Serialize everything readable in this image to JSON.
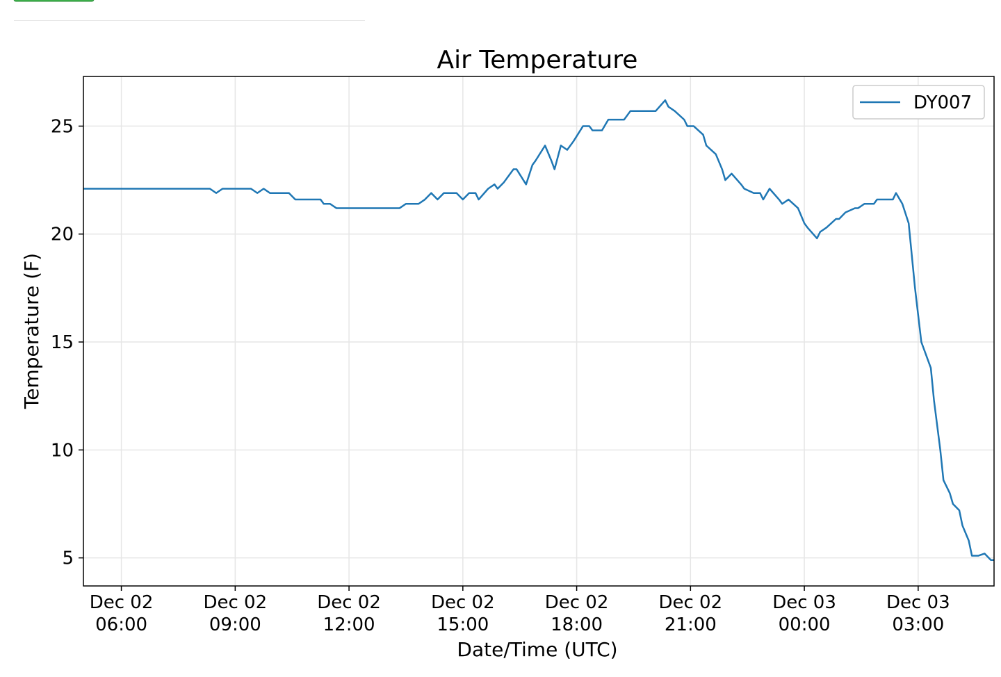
{
  "chart_data": {
    "type": "line",
    "title": "Air Temperature",
    "x_label": "Date/Time (UTC)",
    "y_label": "Temperature (F)",
    "x": [
      "Dec 02 05:00",
      "Dec 02 08:20",
      "Dec 02 08:30",
      "Dec 02 08:40",
      "Dec 02 09:25",
      "Dec 02 09:35",
      "Dec 02 09:45",
      "Dec 02 09:55",
      "Dec 02 10:25",
      "Dec 02 10:35",
      "Dec 02 11:15",
      "Dec 02 11:20",
      "Dec 02 11:30",
      "Dec 02 11:40",
      "Dec 02 13:20",
      "Dec 02 13:30",
      "Dec 02 13:50",
      "Dec 02 14:00",
      "Dec 02 14:10",
      "Dec 02 14:20",
      "Dec 02 14:30",
      "Dec 02 14:50",
      "Dec 02 15:00",
      "Dec 02 15:10",
      "Dec 02 15:20",
      "Dec 02 15:25",
      "Dec 02 15:40",
      "Dec 02 15:50",
      "Dec 02 15:55",
      "Dec 02 16:05",
      "Dec 02 16:20",
      "Dec 02 16:25",
      "Dec 02 16:40",
      "Dec 02 16:50",
      "Dec 02 16:55",
      "Dec 02 17:10",
      "Dec 02 17:20",
      "Dec 02 17:25",
      "Dec 02 17:35",
      "Dec 02 17:45",
      "Dec 02 17:55",
      "Dec 02 18:10",
      "Dec 02 18:20",
      "Dec 02 18:25",
      "Dec 02 18:40",
      "Dec 02 18:50",
      "Dec 02 19:15",
      "Dec 02 19:25",
      "Dec 02 20:05",
      "Dec 02 20:20",
      "Dec 02 20:25",
      "Dec 02 20:35",
      "Dec 02 20:50",
      "Dec 02 20:55",
      "Dec 02 21:05",
      "Dec 02 21:20",
      "Dec 02 21:25",
      "Dec 02 21:40",
      "Dec 02 21:50",
      "Dec 02 21:55",
      "Dec 02 22:05",
      "Dec 02 22:20",
      "Dec 02 22:25",
      "Dec 02 22:40",
      "Dec 02 22:50",
      "Dec 02 22:55",
      "Dec 02 23:05",
      "Dec 02 23:20",
      "Dec 02 23:25",
      "Dec 02 23:35",
      "Dec 02 23:50",
      "Dec 03 00:00",
      "Dec 03 00:05",
      "Dec 03 00:20",
      "Dec 03 00:25",
      "Dec 03 00:35",
      "Dec 03 00:50",
      "Dec 03 00:55",
      "Dec 03 01:05",
      "Dec 03 01:20",
      "Dec 03 01:25",
      "Dec 03 01:35",
      "Dec 03 01:50",
      "Dec 03 01:55",
      "Dec 03 02:20",
      "Dec 03 02:25",
      "Dec 03 02:35",
      "Dec 03 02:45",
      "Dec 03 02:55",
      "Dec 03 03:05",
      "Dec 03 03:20",
      "Dec 03 03:25",
      "Dec 03 03:35",
      "Dec 03 03:40",
      "Dec 03 03:50",
      "Dec 03 03:55",
      "Dec 03 04:05",
      "Dec 03 04:10",
      "Dec 03 04:20",
      "Dec 03 04:25",
      "Dec 03 04:35",
      "Dec 03 04:45",
      "Dec 03 04:55",
      "Dec 03 05:00"
    ],
    "series": [
      {
        "name": "DY007",
        "color": "#1f77b4",
        "values": [
          22.1,
          22.1,
          21.9,
          22.1,
          22.1,
          21.9,
          22.1,
          21.9,
          21.9,
          21.6,
          21.6,
          21.4,
          21.4,
          21.2,
          21.2,
          21.4,
          21.4,
          21.6,
          21.9,
          21.6,
          21.9,
          21.9,
          21.6,
          21.9,
          21.9,
          21.6,
          22.1,
          22.3,
          22.1,
          22.4,
          23.0,
          23.0,
          22.3,
          23.2,
          23.4,
          24.1,
          23.4,
          23.0,
          24.1,
          23.9,
          24.3,
          25.0,
          25.0,
          24.8,
          24.8,
          25.3,
          25.3,
          25.7,
          25.7,
          26.2,
          25.9,
          25.7,
          25.3,
          25.0,
          25.0,
          24.6,
          24.1,
          23.7,
          23.0,
          22.5,
          22.8,
          22.3,
          22.1,
          21.9,
          21.9,
          21.6,
          22.1,
          21.6,
          21.4,
          21.6,
          21.2,
          20.5,
          20.3,
          19.8,
          20.1,
          20.3,
          20.7,
          20.7,
          21.0,
          21.2,
          21.2,
          21.4,
          21.4,
          21.6,
          21.6,
          21.9,
          21.4,
          20.5,
          17.5,
          15.0,
          13.8,
          12.3,
          10.0,
          8.6,
          8.0,
          7.5,
          7.2,
          6.5,
          5.8,
          5.1,
          5.1,
          5.2,
          4.9,
          4.9
        ]
      }
    ],
    "xlim": [
      "Dec 02 05:00",
      "Dec 03 05:00"
    ],
    "xticks": [
      "Dec 02 06:00",
      "Dec 02 09:00",
      "Dec 02 12:00",
      "Dec 02 15:00",
      "Dec 02 18:00",
      "Dec 02 21:00",
      "Dec 03 00:00",
      "Dec 03 03:00"
    ],
    "ylim": [
      3.7,
      27.3
    ],
    "yticks": [
      5,
      10,
      15,
      20,
      25
    ],
    "grid": true,
    "legend": "upper right"
  }
}
